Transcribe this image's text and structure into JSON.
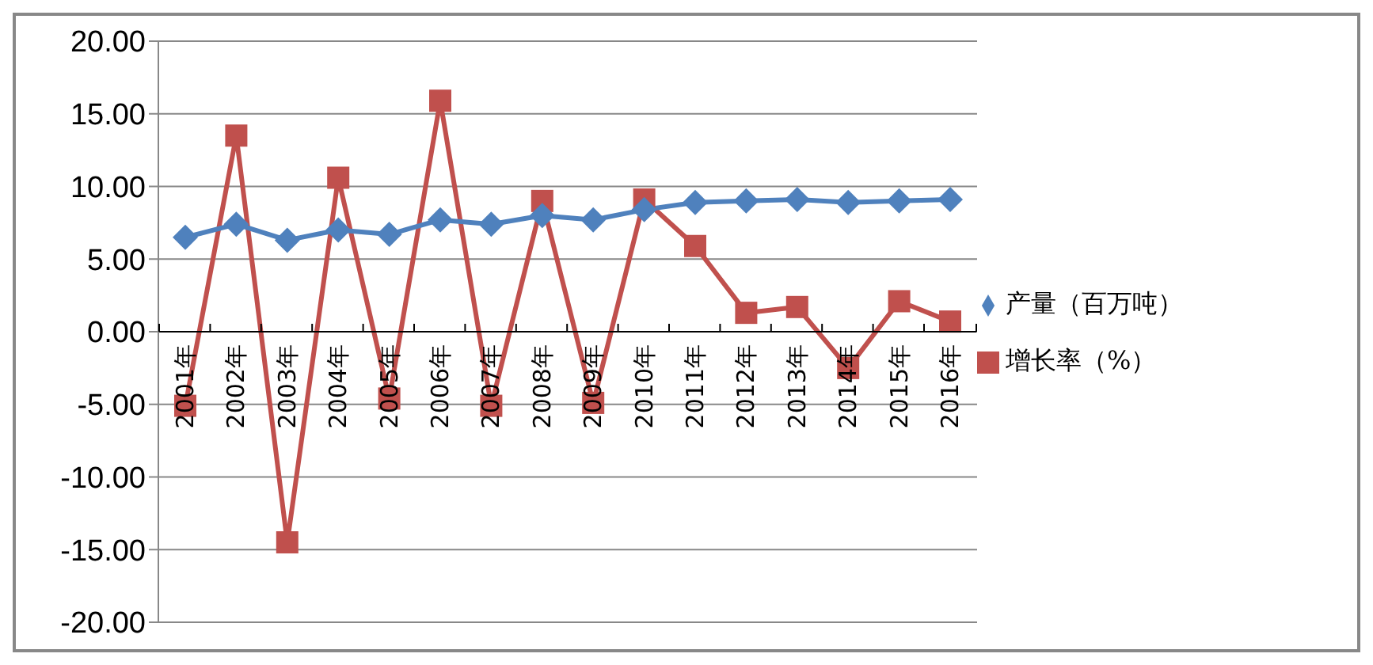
{
  "chart_data": {
    "type": "line",
    "categories": [
      "2001年",
      "2002年",
      "2003年",
      "2004年",
      "2005年",
      "2006年",
      "2007年",
      "2008年",
      "2009年",
      "2010年",
      "2011年",
      "2012年",
      "2013年",
      "2014年",
      "2015年",
      "2016年"
    ],
    "series": [
      {
        "name": "产量（百万吨）",
        "color": "#4f81bd",
        "marker": "diamond",
        "values": [
          6.5,
          7.4,
          6.3,
          7.0,
          6.7,
          7.7,
          7.4,
          8.0,
          7.7,
          8.4,
          8.9,
          9.0,
          9.1,
          8.9,
          9.0,
          9.1
        ]
      },
      {
        "name": "增长率（%）",
        "color": "#c0504d",
        "marker": "square",
        "values": [
          -5.1,
          13.5,
          -14.5,
          10.6,
          -4.6,
          15.9,
          -5.1,
          9.0,
          -4.9,
          9.1,
          5.9,
          1.3,
          1.7,
          -2.5,
          2.1,
          0.7
        ]
      }
    ],
    "ylim": [
      -20,
      20
    ],
    "yticks": [
      {
        "value": -20,
        "label": "-20.00"
      },
      {
        "value": -15,
        "label": "-15.00"
      },
      {
        "value": -10,
        "label": "-10.00"
      },
      {
        "value": -5,
        "label": "-5.00"
      },
      {
        "value": 0,
        "label": "0.00"
      },
      {
        "value": 5,
        "label": "5.00"
      },
      {
        "value": 10,
        "label": "10.00"
      },
      {
        "value": 15,
        "label": "15.00"
      },
      {
        "value": 20,
        "label": "20.00"
      }
    ],
    "grid": "y",
    "legend": "right"
  }
}
